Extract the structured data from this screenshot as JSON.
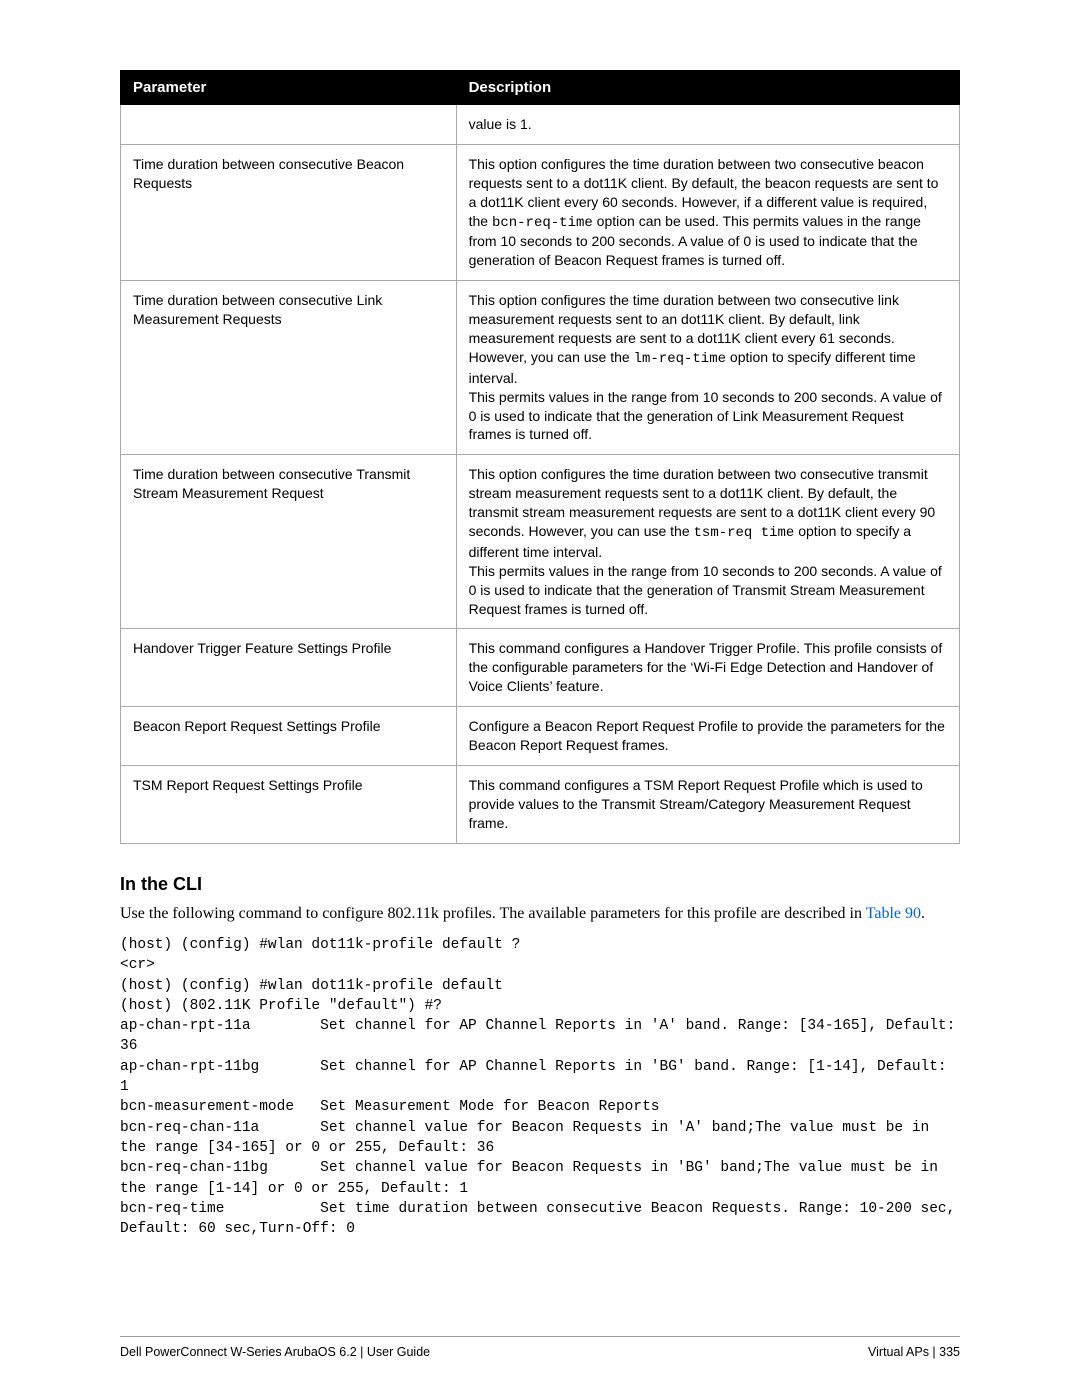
{
  "table": {
    "headers": {
      "param": "Parameter",
      "desc": "Description"
    },
    "rows": [
      {
        "param": "",
        "desc": "value is 1."
      },
      {
        "param": "Time duration between consecutive Beacon Requests",
        "desc_pre": "This option configures the time duration between two consecutive beacon requests sent to a dot11K client. By default, the beacon requests are sent to a dot11K client every 60 seconds. However, if a different value is required, the ",
        "code": "bcn-req-time",
        "desc_post": " option can be used. This permits values in the range from 10 seconds to 200 seconds. A value of 0 is used to indicate that the generation of Beacon Request frames is turned off."
      },
      {
        "param": "Time duration between consecutive Link Measurement Requests",
        "desc_pre": "This option configures the time duration between two consecutive link measurement requests sent to an dot11K client. By default, link measurement requests are sent to a dot11K client every 61 seconds. However, you can use the ",
        "code": "lm-req-time",
        "desc_post": " option to specify different time interval.\nThis permits values in the range from 10 seconds to 200 seconds. A value of 0 is used to indicate that the generation of Link Measurement Request frames is turned off."
      },
      {
        "param": "Time duration between consecutive Transmit Stream Measurement Request",
        "desc_pre": "This option configures the time duration between two consecutive transmit stream measurement requests sent to a dot11K client. By default, the transmit stream measurement requests are sent to a dot11K client every 90 seconds. However, you can use the ",
        "code": "tsm-req time",
        "desc_post": " option to specify a different time interval.\nThis permits values in the range from 10 seconds to 200 seconds. A value of 0 is used to indicate that the generation of Transmit Stream Measurement Request frames is turned off."
      },
      {
        "param": "Handover Trigger Feature Settings Profile",
        "desc": "This command configures a Handover Trigger Profile. This profile consists of the configurable parameters for the ‘Wi-Fi Edge Detection and Handover of Voice Clients’ feature."
      },
      {
        "param": "Beacon Report Request Settings Profile",
        "desc": "Configure a Beacon Report Request Profile to provide the parameters for the Beacon Report Request frames."
      },
      {
        "param": "TSM Report Request Settings Profile",
        "desc": "This command configures a TSM Report Request Profile which is used to provide values to the Transmit Stream/Category Measurement Request frame."
      }
    ]
  },
  "section": {
    "heading": "In the CLI",
    "intro_a": "Use the following command to configure 802.11k profiles. The available parameters for this profile are described in ",
    "intro_link": "Table 90",
    "intro_b": "."
  },
  "cli": "(host) (config) #wlan dot11k-profile default ?\n<cr>\n(host) (config) #wlan dot11k-profile default\n(host) (802.11K Profile \"default\") #?\nap-chan-rpt-11a        Set channel for AP Channel Reports in 'A' band. Range: [34-165], Default: 36\nap-chan-rpt-11bg       Set channel for AP Channel Reports in 'BG' band. Range: [1-14], Default: 1\nbcn-measurement-mode   Set Measurement Mode for Beacon Reports\nbcn-req-chan-11a       Set channel value for Beacon Requests in 'A' band;The value must be in the range [34-165] or 0 or 255, Default: 36\nbcn-req-chan-11bg      Set channel value for Beacon Requests in 'BG' band;The value must be in the range [1-14] or 0 or 255, Default: 1\nbcn-req-time           Set time duration between consecutive Beacon Requests. Range: 10-200 sec, Default: 60 sec,Turn-Off: 0",
  "footer": {
    "left": "Dell PowerConnect W-Series ArubaOS 6.2  |  User Guide",
    "right": "Virtual APs  |  335"
  }
}
